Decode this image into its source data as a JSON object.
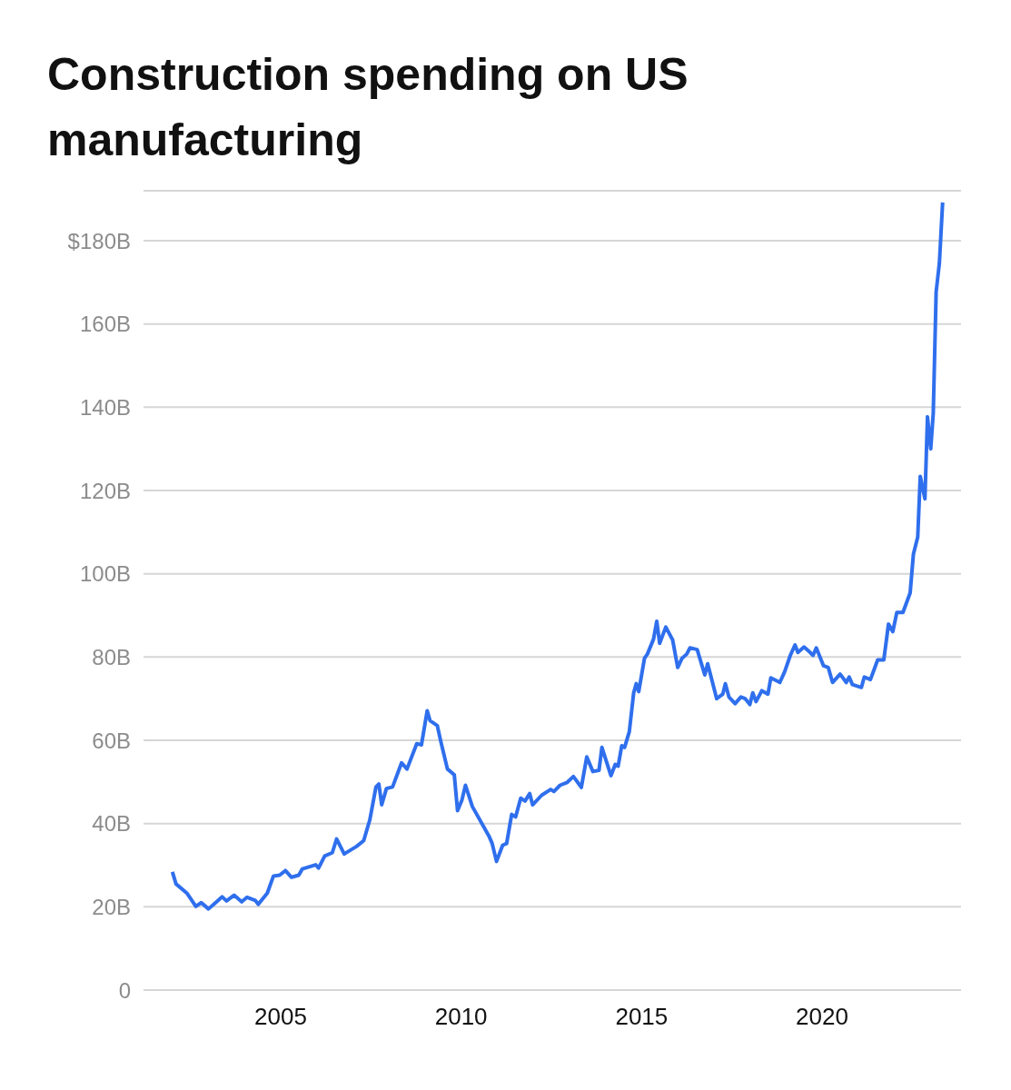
{
  "chart_data": {
    "type": "line",
    "title": "Construction spending on US manufacturing",
    "x": [
      2002.0,
      2002.1,
      2002.4,
      2002.65,
      2002.8,
      2003.0,
      2003.17,
      2003.38,
      2003.5,
      2003.71,
      2003.92,
      2004.07,
      2004.3,
      2004.38,
      2004.63,
      2004.8,
      2004.97,
      2005.13,
      2005.3,
      2005.5,
      2005.6,
      2005.97,
      2006.05,
      2006.22,
      2006.43,
      2006.55,
      2006.76,
      2007.1,
      2007.3,
      2007.47,
      2007.64,
      2007.72,
      2007.8,
      2007.93,
      2008.1,
      2008.35,
      2008.5,
      2008.77,
      2008.9,
      2009.06,
      2009.14,
      2009.34,
      2009.44,
      2009.62,
      2009.81,
      2009.9,
      2010.02,
      2010.12,
      2010.31,
      2010.77,
      2010.86,
      2010.98,
      2011.15,
      2011.26,
      2011.4,
      2011.51,
      2011.65,
      2011.77,
      2011.9,
      2011.98,
      2012.23,
      2012.48,
      2012.57,
      2012.74,
      2012.94,
      2013.11,
      2013.33,
      2013.48,
      2013.65,
      2013.82,
      2013.9,
      2014.15,
      2014.27,
      2014.35,
      2014.45,
      2014.53,
      2014.66,
      2014.78,
      2014.85,
      2014.92,
      2015.08,
      2015.16,
      2015.33,
      2015.42,
      2015.5,
      2015.67,
      2015.86,
      2016.0,
      2016.12,
      2016.25,
      2016.34,
      2016.54,
      2016.75,
      2016.83,
      2017.08,
      2017.25,
      2017.32,
      2017.42,
      2017.59,
      2017.75,
      2017.87,
      2018.0,
      2018.08,
      2018.17,
      2018.33,
      2018.5,
      2018.58,
      2018.83,
      2018.96,
      2019.12,
      2019.25,
      2019.33,
      2019.5,
      2019.67,
      2019.75,
      2019.84,
      2020.04,
      2020.17,
      2020.29,
      2020.5,
      2020.67,
      2020.75,
      2020.84,
      2021.09,
      2021.17,
      2021.34,
      2021.54,
      2021.71,
      2021.84,
      2021.96,
      2022.07,
      2022.24,
      2022.44,
      2022.53,
      2022.65,
      2022.72,
      2022.85,
      2022.92,
      2023.01,
      2023.08,
      2023.16,
      2023.25,
      2023.34
    ],
    "series": [
      {
        "color": "#2f6fed",
        "values": [
          28.4,
          25.5,
          23.3,
          20.1,
          21.0,
          19.5,
          20.8,
          22.4,
          21.4,
          22.8,
          21.2,
          22.3,
          21.5,
          20.6,
          23.3,
          27.4,
          27.6,
          28.7,
          27.1,
          27.6,
          29.1,
          30.1,
          29.3,
          32.2,
          33.0,
          36.3,
          32.7,
          34.5,
          35.9,
          40.9,
          48.8,
          49.5,
          44.5,
          48.4,
          48.8,
          54.6,
          53.1,
          59.2,
          58.9,
          67.1,
          64.7,
          63.5,
          59.6,
          53.1,
          51.7,
          43.1,
          45.6,
          49.2,
          44.1,
          37.0,
          35.2,
          30.9,
          34.8,
          35.2,
          42.2,
          41.6,
          46.1,
          45.4,
          47.2,
          44.5,
          46.8,
          48.2,
          47.7,
          49.2,
          49.9,
          51.3,
          48.7,
          56.0,
          52.5,
          52.8,
          58.3,
          51.5,
          54.2,
          53.8,
          58.7,
          58.3,
          62.1,
          71.4,
          73.6,
          71.7,
          79.7,
          80.7,
          84.3,
          88.6,
          83.3,
          87.2,
          84.1,
          77.5,
          79.7,
          80.7,
          82.2,
          81.8,
          75.7,
          78.4,
          70.0,
          71.1,
          73.6,
          70.4,
          68.8,
          70.4,
          70.0,
          68.6,
          71.4,
          69.3,
          71.9,
          71.1,
          75.0,
          73.9,
          76.4,
          80.4,
          82.9,
          81.1,
          82.4,
          81.1,
          80.4,
          82.2,
          77.9,
          77.5,
          73.9,
          75.9,
          73.9,
          75.2,
          73.4,
          72.7,
          75.2,
          74.6,
          79.3,
          79.3,
          87.9,
          86.1,
          90.7,
          90.7,
          95.4,
          104.7,
          108.8,
          123.4,
          118.0,
          137.7,
          130.0,
          138.5,
          167.7,
          174.6,
          189.2
        ]
      }
    ],
    "xlim": [
      2001.2,
      2023.85
    ],
    "xticks": [
      2005,
      2010,
      2015,
      2020
    ],
    "ylim": [
      0,
      192
    ],
    "yticks": [
      0,
      {
        "value": 20,
        "label": "20B"
      },
      {
        "value": 40,
        "label": "40B"
      },
      {
        "value": 60,
        "label": "60B"
      },
      {
        "value": 80,
        "label": "80B"
      },
      {
        "value": 100,
        "label": "100B"
      },
      {
        "value": 120,
        "label": "120B"
      },
      {
        "value": 140,
        "label": "140B"
      },
      {
        "value": 160,
        "label": "160B"
      },
      {
        "value": 180,
        "label": "$180B"
      }
    ],
    "grid": "y",
    "legend": false,
    "marker": "none",
    "line_style": "solid"
  }
}
